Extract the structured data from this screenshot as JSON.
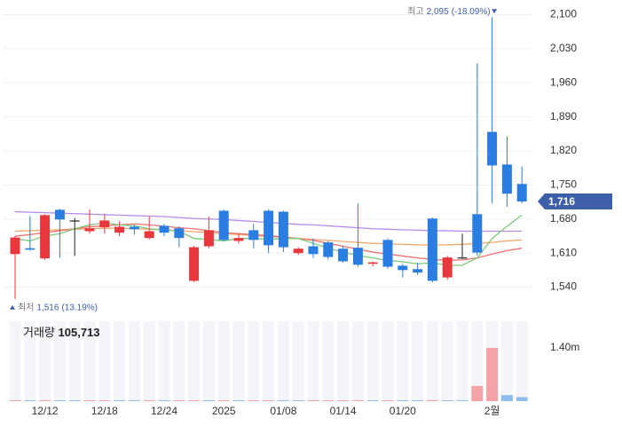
{
  "chart_data": {
    "type": "candlestick",
    "categories": [
      null,
      null,
      "12/12",
      null,
      null,
      null,
      "12/18",
      null,
      null,
      null,
      "12/24",
      null,
      null,
      null,
      "2025",
      null,
      null,
      null,
      "01/08",
      null,
      null,
      null,
      "01/14",
      null,
      null,
      null,
      "01/20",
      null,
      null,
      null,
      null,
      null,
      "2월",
      null,
      null
    ],
    "open": [
      1608,
      1620,
      1599,
      1699,
      1677,
      1655,
      1663,
      1652,
      1664,
      1641,
      1666,
      1661,
      1553,
      1624,
      1697,
      1635,
      1657,
      1697,
      1695,
      1610,
      1624,
      1632,
      1619,
      1621,
      1588,
      1637,
      1584,
      1577,
      1681,
      1560,
      1601,
      1690,
      1859,
      1792,
      1752
    ],
    "close": [
      1642,
      1617,
      1688,
      1679,
      1677,
      1661,
      1677,
      1664,
      1659,
      1655,
      1652,
      1641,
      1622,
      1657,
      1637,
      1641,
      1637,
      1626,
      1622,
      1619,
      1608,
      1602,
      1593,
      1586,
      1591,
      1582,
      1575,
      1570,
      1553,
      1601,
      1601,
      1611,
      1790,
      1732,
      1716
    ],
    "high": [
      1645,
      1686,
      1690,
      1701,
      1682,
      1700,
      1690,
      1675,
      1668,
      1685,
      1670,
      1665,
      1625,
      1685,
      1700,
      1650,
      1670,
      1700,
      1697,
      1622,
      1640,
      1635,
      1625,
      1712,
      1593,
      1640,
      1588,
      1590,
      1683,
      1604,
      1650,
      2000,
      2095,
      1850,
      1788
    ],
    "low": [
      1516,
      1615,
      1596,
      1600,
      1604,
      1650,
      1650,
      1645,
      1648,
      1638,
      1645,
      1622,
      1550,
      1620,
      1635,
      1630,
      1620,
      1610,
      1612,
      1606,
      1600,
      1597,
      1590,
      1582,
      1583,
      1578,
      1560,
      1565,
      1550,
      1555,
      1598,
      1605,
      1712,
      1705,
      1712
    ],
    "up_color": "#e8383d",
    "down_color": "#2a7de1",
    "flat_color": "#222222",
    "moving_averages": [
      {
        "color": "#b48cf0",
        "values": [
          1695,
          1694,
          1693,
          1692,
          1691,
          1690,
          1689,
          1688,
          1687,
          1686,
          1685,
          1683,
          1681,
          1680,
          1679,
          1677,
          1675,
          1673,
          1671,
          1669,
          1668,
          1666,
          1664,
          1662,
          1660,
          1659,
          1658,
          1657,
          1656,
          1656,
          1655,
          1655,
          1655,
          1655,
          1655
        ]
      },
      {
        "color": "#f5a86a",
        "values": [
          1655,
          1656,
          1657,
          1658,
          1659,
          1660,
          1661,
          1661,
          1660,
          1659,
          1658,
          1656,
          1654,
          1652,
          1650,
          1648,
          1646,
          1644,
          1642,
          1640,
          1638,
          1636,
          1634,
          1632,
          1630,
          1629,
          1628,
          1627,
          1627,
          1627,
          1628,
          1630,
          1632,
          1635,
          1637
        ]
      },
      {
        "color": "#f07070",
        "values": [
          1645,
          1648,
          1652,
          1656,
          1660,
          1664,
          1666,
          1668,
          1670,
          1668,
          1665,
          1662,
          1660,
          1656,
          1652,
          1650,
          1648,
          1646,
          1643,
          1640,
          1636,
          1630,
          1624,
          1618,
          1612,
          1608,
          1604,
          1600,
          1597,
          1595,
          1596,
          1600,
          1608,
          1615,
          1620
        ]
      },
      {
        "color": "#7cc97c",
        "values": [
          1640,
          1635,
          1645,
          1650,
          1660,
          1668,
          1672,
          1668,
          1666,
          1660,
          1658,
          1655,
          1640,
          1638,
          1635,
          1640,
          1640,
          1638,
          1640,
          1640,
          1630,
          1620,
          1612,
          1605,
          1600,
          1595,
          1592,
          1588,
          1590,
          1585,
          1585,
          1600,
          1640,
          1665,
          1688
        ]
      }
    ],
    "ylim": [
      1510,
      2130
    ],
    "yticks": [
      {
        "value": 2100,
        "label": "2,100"
      },
      {
        "value": 2030,
        "label": "2,030"
      },
      {
        "value": 1960,
        "label": "1,960"
      },
      {
        "value": 1890,
        "label": "1,890"
      },
      {
        "value": 1820,
        "label": "1,820"
      },
      {
        "value": 1750,
        "label": "1,750"
      },
      {
        "value": 1680,
        "label": "1,680"
      },
      {
        "value": 1610,
        "label": "1,610"
      },
      {
        "value": 1540,
        "label": "1,540"
      }
    ],
    "grid": true,
    "high_note": {
      "title": "최고",
      "value": "2,095",
      "change": "(-18.09%)"
    },
    "low_note": {
      "title": "최저",
      "value": "1,516",
      "change": "(13.19%)"
    },
    "current_price": {
      "value": 1716,
      "label": "1,716"
    },
    "volume": {
      "title": "거래량",
      "last_label": "105,713",
      "values": [
        22000,
        18000,
        25000,
        20000,
        15000,
        19000,
        21000,
        16000,
        14000,
        18000,
        17000,
        20000,
        24000,
        19000,
        23000,
        15000,
        16000,
        22000,
        21000,
        14000,
        17000,
        18000,
        19000,
        25000,
        13000,
        20000,
        18000,
        16000,
        26000,
        21000,
        15000,
        400000,
        1400000,
        160000,
        105713
      ],
      "ylim": [
        0,
        2100000
      ],
      "yticks": [
        {
          "value": 1400000,
          "label": "1.40m"
        }
      ],
      "up_color": "#f4a3a6",
      "down_color": "#8fbdf0"
    }
  }
}
